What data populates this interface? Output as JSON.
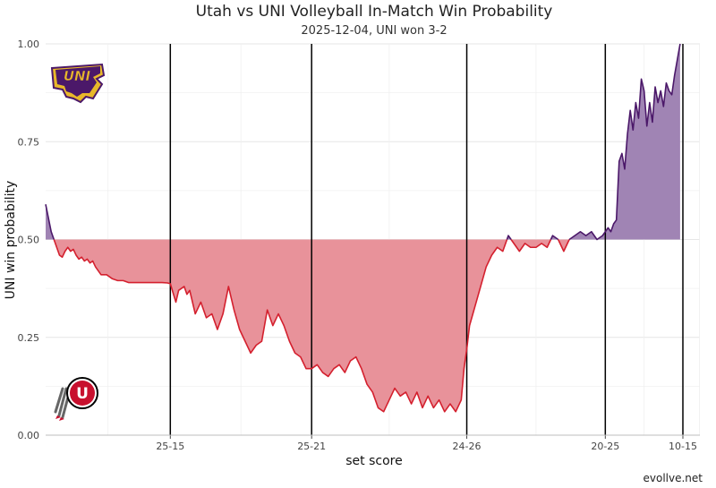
{
  "chart_data": {
    "type": "area",
    "title": "Utah vs UNI Volleyball In-Match Win Probability",
    "subtitle": "2025-12-04, UNI won 3-2",
    "xlabel": "set score",
    "ylabel": "UNI win probability",
    "caption": "evollve.net",
    "ylim": [
      0,
      1
    ],
    "yticks": [
      {
        "value": 0,
        "label": "0.00"
      },
      {
        "value": 0.25,
        "label": "0.25"
      },
      {
        "value": 0.5,
        "label": "0.50"
      },
      {
        "value": 0.75,
        "label": "0.75"
      },
      {
        "value": 1,
        "label": "1.00"
      }
    ],
    "xlim": [
      0,
      229
    ],
    "set_ends": [
      {
        "x": 45,
        "label": "25-15"
      },
      {
        "x": 96,
        "label": "25-21"
      },
      {
        "x": 152,
        "label": "24-26"
      },
      {
        "x": 202,
        "label": "20-25"
      },
      {
        "x": 230,
        "label": "10-15"
      }
    ],
    "baseline": 0.5,
    "colors": {
      "above": "#4b1869",
      "above_fill": "#a084b4",
      "below": "#d4202e",
      "below_fill": "#e8929a",
      "set_line": "#000000",
      "grid": "#e6e6e6"
    },
    "logos": {
      "top": "UNI",
      "bottom": "U"
    },
    "series": [
      {
        "x": [
          0,
          2,
          4,
          5,
          6,
          7,
          8,
          9,
          10,
          11,
          12,
          13,
          14,
          15,
          16,
          17,
          18,
          19,
          20,
          22,
          24,
          26,
          28,
          30,
          32,
          34,
          36,
          38,
          40,
          42,
          44,
          45,
          47,
          48,
          50,
          51,
          52,
          54,
          56,
          58,
          60,
          62,
          64,
          66,
          68,
          70,
          72,
          74,
          76,
          78,
          80,
          82,
          84,
          86,
          88,
          90,
          92,
          94,
          96,
          98,
          100,
          102,
          104,
          106,
          108,
          110,
          112,
          114,
          116,
          118,
          120,
          122,
          124,
          126,
          128,
          130,
          132,
          134,
          136,
          138,
          140,
          142,
          144,
          146,
          148,
          150,
          151,
          152,
          153,
          155,
          157,
          159,
          161,
          163,
          165,
          167,
          169,
          171,
          173,
          175,
          177,
          179,
          181,
          183,
          185,
          187,
          189,
          191,
          193,
          195,
          197,
          199,
          201,
          202,
          203,
          204,
          205,
          206,
          207,
          208,
          209,
          210,
          211,
          212,
          213,
          214,
          215,
          216,
          217,
          218,
          219,
          220,
          221,
          222,
          223,
          224,
          225,
          226,
          227,
          228,
          229
        ],
        "y": [
          0.59,
          0.52,
          0.48,
          0.46,
          0.455,
          0.47,
          0.48,
          0.47,
          0.475,
          0.46,
          0.45,
          0.455,
          0.445,
          0.45,
          0.44,
          0.445,
          0.43,
          0.42,
          0.41,
          0.41,
          0.4,
          0.395,
          0.395,
          0.39,
          0.39,
          0.39,
          0.39,
          0.39,
          0.39,
          0.39,
          0.389,
          0.387,
          0.34,
          0.37,
          0.38,
          0.36,
          0.37,
          0.31,
          0.34,
          0.3,
          0.31,
          0.27,
          0.31,
          0.38,
          0.32,
          0.27,
          0.24,
          0.21,
          0.23,
          0.24,
          0.32,
          0.28,
          0.31,
          0.28,
          0.24,
          0.21,
          0.2,
          0.17,
          0.17,
          0.18,
          0.16,
          0.15,
          0.17,
          0.18,
          0.16,
          0.19,
          0.2,
          0.17,
          0.13,
          0.11,
          0.07,
          0.06,
          0.09,
          0.12,
          0.1,
          0.11,
          0.08,
          0.11,
          0.07,
          0.1,
          0.07,
          0.09,
          0.06,
          0.08,
          0.06,
          0.09,
          0.17,
          0.22,
          0.28,
          0.33,
          0.38,
          0.43,
          0.46,
          0.48,
          0.47,
          0.51,
          0.49,
          0.47,
          0.49,
          0.48,
          0.48,
          0.49,
          0.48,
          0.51,
          0.5,
          0.47,
          0.5,
          0.51,
          0.52,
          0.51,
          0.52,
          0.5,
          0.51,
          0.52,
          0.53,
          0.52,
          0.54,
          0.55,
          0.7,
          0.72,
          0.68,
          0.77,
          0.83,
          0.78,
          0.85,
          0.81,
          0.91,
          0.88,
          0.79,
          0.85,
          0.8,
          0.89,
          0.85,
          0.88,
          0.84,
          0.9,
          0.88,
          0.87,
          0.92,
          0.96,
          1.0
        ]
      }
    ]
  }
}
